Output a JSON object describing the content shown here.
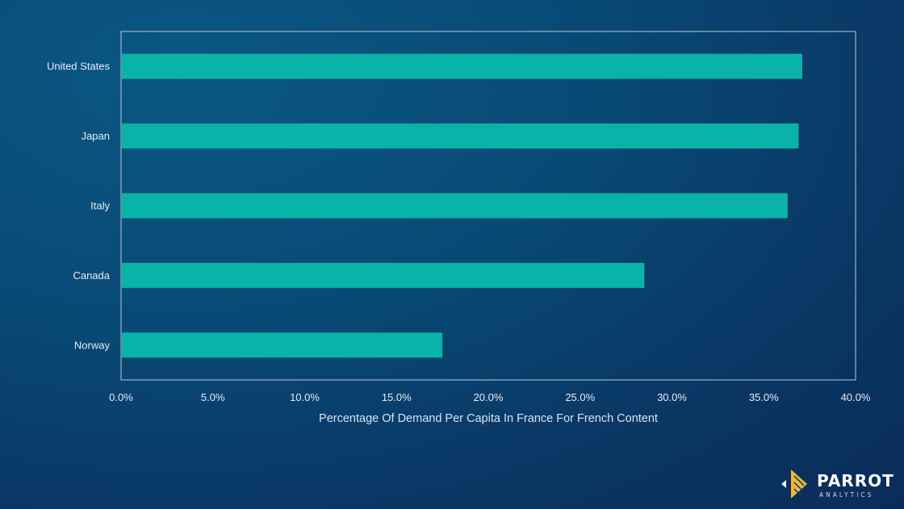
{
  "chart_data": {
    "type": "bar",
    "orientation": "horizontal",
    "categories": [
      "United States",
      "Japan",
      "Italy",
      "Canada",
      "Norway"
    ],
    "values": [
      37.1,
      36.9,
      36.3,
      28.5,
      17.5
    ],
    "xlabel": "Percentage Of Demand Per Capita In France For French Content",
    "ylabel": "",
    "xlim": [
      0,
      40
    ],
    "x_ticks": [
      "0.0%",
      "5.0%",
      "10.0%",
      "15.0%",
      "20.0%",
      "25.0%",
      "30.0%",
      "35.0%",
      "40.0%"
    ],
    "grid": false,
    "legend": "none"
  },
  "colors": {
    "bar": "#0ab3a7",
    "frame": "#b9c8d6"
  },
  "branding": {
    "logo_word": "PARROT",
    "logo_sub": "ANALYTICS",
    "logo_icon": "parrot-logo-icon"
  }
}
